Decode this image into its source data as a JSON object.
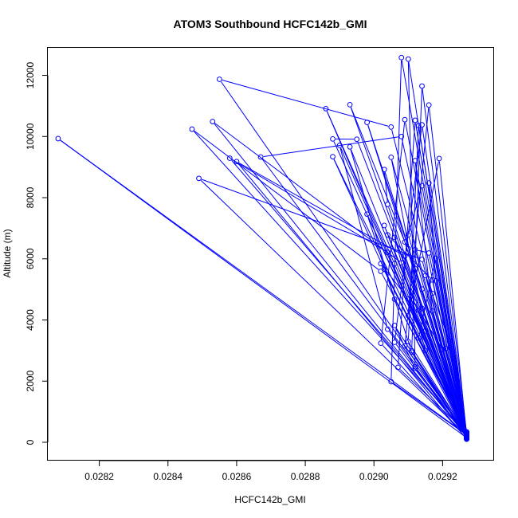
{
  "chart_data": {
    "type": "line",
    "title": "ATOM3 Southbound HCFC142b_GMI",
    "xlabel": "HCFC142b_GMI",
    "ylabel": "Altitude (m)",
    "xlim": [
      0.02805,
      0.02935
    ],
    "ylim": [
      -600,
      12900
    ],
    "x_ticks": [
      0.0282,
      0.0284,
      0.0286,
      0.0288,
      0.029,
      0.0292
    ],
    "x_tick_labels": [
      "0.0282",
      "0.0284",
      "0.0286",
      "0.0288",
      "0.0290",
      "0.0292"
    ],
    "y_ticks": [
      0,
      2000,
      4000,
      6000,
      8000,
      10000,
      12000
    ],
    "y_tick_labels": [
      "0",
      "2000",
      "4000",
      "6000",
      "8000",
      "10000",
      "12000"
    ],
    "grid": false,
    "series": [
      {
        "name": "HCFC142b_GMI",
        "color": "#0000ff",
        "marker": "open-circle",
        "points": [
          [
            0.02927,
            150
          ],
          [
            0.02808,
            9930
          ],
          [
            0.02927,
            250
          ],
          [
            0.02855,
            11870
          ],
          [
            0.02905,
            10310
          ],
          [
            0.02927,
            320
          ],
          [
            0.02847,
            10240
          ],
          [
            0.02902,
            5590
          ],
          [
            0.02927,
            180
          ],
          [
            0.02853,
            10490
          ],
          [
            0.02908,
            5870
          ],
          [
            0.02927,
            280
          ],
          [
            0.02858,
            9290
          ],
          [
            0.02904,
            6210
          ],
          [
            0.02927,
            100
          ],
          [
            0.0286,
            9180
          ],
          [
            0.02909,
            6090
          ],
          [
            0.02927,
            220
          ],
          [
            0.02849,
            8630
          ],
          [
            0.02914,
            5980
          ],
          [
            0.02927,
            300
          ],
          [
            0.02867,
            9330
          ],
          [
            0.02908,
            10000
          ],
          [
            0.02927,
            200
          ],
          [
            0.02886,
            10910
          ],
          [
            0.02906,
            5840
          ],
          [
            0.02927,
            260
          ],
          [
            0.02893,
            11040
          ],
          [
            0.02909,
            6550
          ],
          [
            0.02927,
            140
          ],
          [
            0.02898,
            10460
          ],
          [
            0.02914,
            5010
          ],
          [
            0.02927,
            330
          ],
          [
            0.02908,
            12580
          ],
          [
            0.02905,
            1980
          ],
          [
            0.02927,
            240
          ],
          [
            0.0291,
            12530
          ],
          [
            0.02912,
            2470
          ],
          [
            0.02927,
            170
          ],
          [
            0.02914,
            11650
          ],
          [
            0.02911,
            2990
          ],
          [
            0.02927,
            290
          ],
          [
            0.02916,
            11030
          ],
          [
            0.02909,
            3150
          ],
          [
            0.02927,
            210
          ],
          [
            0.02909,
            10550
          ],
          [
            0.02902,
            3240
          ],
          [
            0.02927,
            120
          ],
          [
            0.02912,
            10530
          ],
          [
            0.02907,
            2450
          ],
          [
            0.02927,
            310
          ],
          [
            0.02914,
            10380
          ],
          [
            0.02906,
            3270
          ],
          [
            0.02927,
            190
          ],
          [
            0.02913,
            10360
          ],
          [
            0.0291,
            3290
          ],
          [
            0.02927,
            270
          ],
          [
            0.02888,
            9920
          ],
          [
            0.02895,
            9910
          ],
          [
            0.02914,
            4380
          ],
          [
            0.02927,
            230
          ],
          [
            0.0289,
            9710
          ],
          [
            0.02904,
            3700
          ],
          [
            0.02927,
            160
          ],
          [
            0.02893,
            9660
          ],
          [
            0.02906,
            4680
          ],
          [
            0.02927,
            340
          ],
          [
            0.02888,
            9340
          ],
          [
            0.02903,
            5660
          ],
          [
            0.02927,
            250
          ],
          [
            0.02905,
            9320
          ],
          [
            0.02915,
            3640
          ],
          [
            0.02927,
            130
          ],
          [
            0.02912,
            9210
          ],
          [
            0.02917,
            4290
          ],
          [
            0.02927,
            300
          ],
          [
            0.02903,
            8920
          ],
          [
            0.02904,
            7780
          ],
          [
            0.02927,
            200
          ],
          [
            0.02919,
            9280
          ],
          [
            0.0291,
            4140
          ],
          [
            0.02927,
            280
          ],
          [
            0.02916,
            8480
          ],
          [
            0.02918,
            5280
          ],
          [
            0.02927,
            150
          ],
          [
            0.02914,
            8390
          ],
          [
            0.0291,
            6780
          ],
          [
            0.02927,
            320
          ],
          [
            0.02898,
            7460
          ],
          [
            0.02911,
            2950
          ],
          [
            0.02927,
            220
          ],
          [
            0.02903,
            7090
          ],
          [
            0.02912,
            4590
          ],
          [
            0.02927,
            260
          ],
          [
            0.02904,
            6780
          ],
          [
            0.02917,
            5310
          ],
          [
            0.02927,
            180
          ],
          [
            0.02906,
            6700
          ],
          [
            0.02915,
            3000
          ],
          [
            0.02927,
            240
          ],
          [
            0.0291,
            6330
          ],
          [
            0.02912,
            5680
          ],
          [
            0.02927,
            110
          ],
          [
            0.02912,
            6300
          ],
          [
            0.02916,
            6190
          ],
          [
            0.02927,
            290
          ],
          [
            0.02918,
            6020
          ],
          [
            0.02913,
            3410
          ],
          [
            0.02927,
            210
          ],
          [
            0.02902,
            5840
          ],
          [
            0.0291,
            4690
          ],
          [
            0.02927,
            330
          ],
          [
            0.02915,
            5450
          ],
          [
            0.02922,
            3310
          ],
          [
            0.02927,
            170
          ],
          [
            0.02917,
            4870
          ],
          [
            0.02921,
            3070
          ],
          [
            0.02927,
            250
          ],
          [
            0.02913,
            4320
          ],
          [
            0.0292,
            3040
          ],
          [
            0.02927,
            140
          ],
          [
            0.02906,
            3820
          ],
          [
            0.02912,
            2420
          ],
          [
            0.02927,
            310
          ]
        ]
      }
    ]
  }
}
